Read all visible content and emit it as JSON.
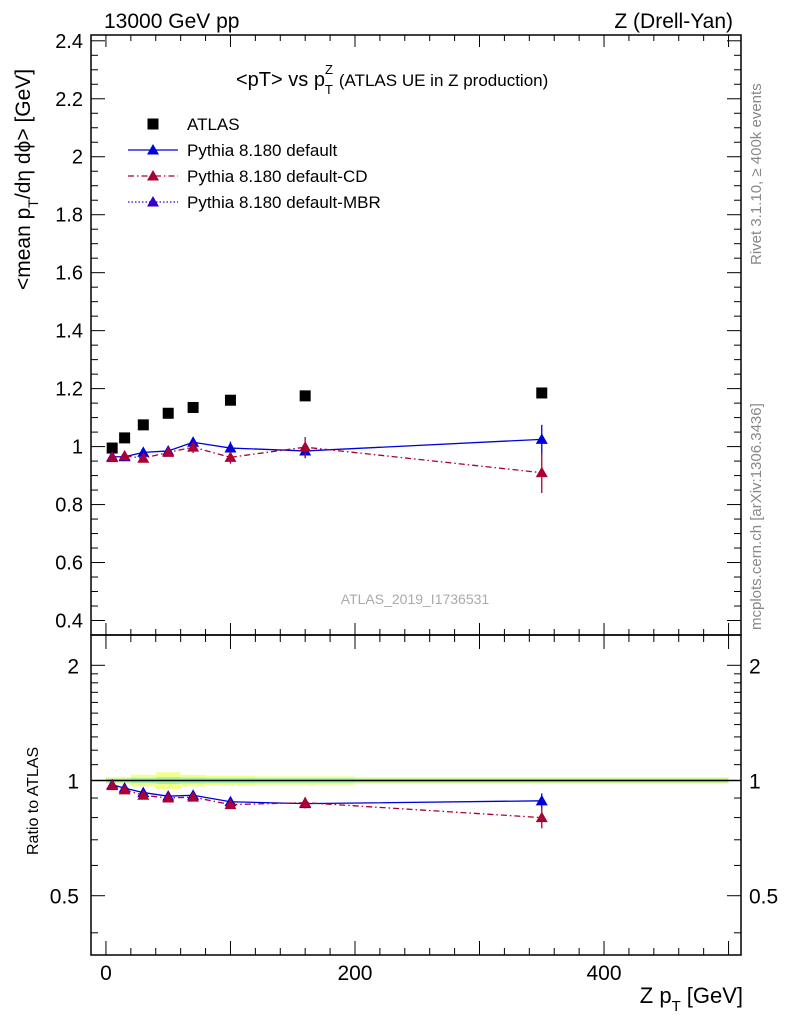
{
  "header": {
    "left": "13000 GeV pp",
    "right": "Z (Drell-Yan)"
  },
  "side_text": {
    "rivet": "Rivet 3.1.10, ≥ 400k events",
    "mcplots": "mcplots.cern.ch [arXiv:1306.3436]"
  },
  "watermark": "ATLAS_2019_I1736531",
  "chart_data": [
    {
      "type": "scatter",
      "title_main": "<pT> vs p",
      "title_sup": "Z",
      "title_sub": "T",
      "title_rest": "(ATLAS UE in Z production)",
      "ylabel": "<mean p",
      "ylabel_sub": "T",
      "ylabel_rest": "/dη dϕ> [GeV]",
      "xlim": [
        -12,
        510
      ],
      "ylim": [
        0.35,
        2.42
      ],
      "yticks": [
        0.4,
        0.6,
        0.8,
        1.0,
        1.2,
        1.4,
        1.6,
        1.8,
        2.0,
        2.2,
        2.4
      ],
      "ytick_labels": [
        "0.4",
        "0.6",
        "0.8",
        "1",
        "1.2",
        "1.4",
        "1.6",
        "1.8",
        "2",
        "2.2",
        "2.4"
      ],
      "x": [
        5,
        15,
        30,
        50,
        70,
        100,
        160,
        350
      ],
      "series": [
        {
          "name": "ATLAS",
          "color": "#000000",
          "marker": "square",
          "values": [
            0.995,
            1.03,
            1.075,
            1.115,
            1.135,
            1.16,
            1.175,
            1.185
          ],
          "errors": [
            0.005,
            0.005,
            0.005,
            0.006,
            0.006,
            0.006,
            0.007,
            0.01
          ]
        },
        {
          "name": "Pythia 8.180 default",
          "color": "#0000dd",
          "marker": "triangle",
          "line": "solid",
          "values": [
            0.965,
            0.965,
            0.98,
            0.985,
            1.015,
            0.995,
            0.985,
            1.025
          ],
          "errors": [
            0.008,
            0.008,
            0.008,
            0.01,
            0.018,
            0.022,
            0.025,
            0.05
          ]
        },
        {
          "name": "Pythia 8.180 default-CD",
          "color": "#aa0033",
          "marker": "triangle",
          "line": "dashdot",
          "values": [
            0.962,
            0.968,
            0.96,
            0.98,
            0.998,
            0.963,
            0.998,
            0.91
          ],
          "errors": [
            0.008,
            0.008,
            0.008,
            0.01,
            0.02,
            0.022,
            0.035,
            0.07
          ]
        },
        {
          "name": "Pythia 8.180 default-MBR",
          "color": "#3300cc",
          "marker": "triangle",
          "line": "dotted",
          "values": [],
          "errors": []
        }
      ]
    },
    {
      "type": "scatter",
      "ylabel": "Ratio to ATLAS",
      "xlabel": "Z p",
      "xlabel_sub": "T",
      "xlabel_rest": "[GeV]",
      "xlim": [
        -12,
        510
      ],
      "ylim": [
        0.35,
        2.4
      ],
      "log_y": true,
      "yticks_major": [
        0.5,
        1,
        2
      ],
      "ytick_labels": [
        "0.5",
        "1",
        "2"
      ],
      "xticks": [
        0,
        200,
        400
      ],
      "xtick_labels": [
        "0",
        "200",
        "400"
      ],
      "x": [
        5,
        15,
        30,
        50,
        70,
        100,
        160,
        350
      ],
      "band_edges": [
        0,
        10,
        20,
        40,
        60,
        80,
        120,
        200,
        500
      ],
      "band_green": [
        0.012,
        0.012,
        0.016,
        0.02,
        0.018,
        0.016,
        0.014,
        0.012
      ],
      "band_yellow": [
        0.02,
        0.022,
        0.035,
        0.05,
        0.035,
        0.03,
        0.025,
        0.02
      ],
      "series": [
        {
          "name": "Pythia 8.180 default",
          "color": "#0000dd",
          "line": "solid",
          "values": [
            0.975,
            0.955,
            0.93,
            0.91,
            0.915,
            0.88,
            0.87,
            0.885
          ],
          "errors": [
            0.008,
            0.008,
            0.008,
            0.01,
            0.015,
            0.018,
            0.02,
            0.04
          ]
        },
        {
          "name": "Pythia 8.180 default-CD",
          "color": "#aa0033",
          "line": "dashdot",
          "values": [
            0.97,
            0.945,
            0.915,
            0.9,
            0.905,
            0.865,
            0.875,
            0.8
          ],
          "errors": [
            0.008,
            0.008,
            0.008,
            0.01,
            0.016,
            0.018,
            0.03,
            0.05
          ]
        }
      ]
    }
  ]
}
